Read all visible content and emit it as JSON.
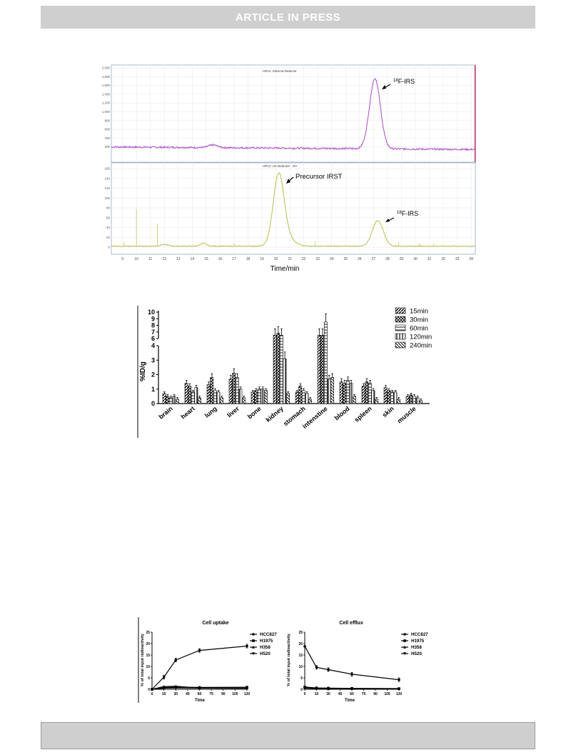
{
  "header": {
    "banner": "ARTICLE IN PRESS"
  },
  "figure1": {
    "gamma": {
      "title": "HPLC Gamma Detector",
      "yticks": [
        "2,000",
        "1,800",
        "1,600",
        "1,400",
        "1,200",
        "1,000",
        "800",
        "600",
        "400",
        "200"
      ],
      "peak_label": "18F-IRS",
      "peak_label_sup": "18",
      "peak_label_main": "F-IRS",
      "color": "#b05ac8"
    },
    "uv": {
      "title": "HPLC UV Detector - 3H",
      "yticks": [
        "160",
        "140",
        "120",
        "100",
        "80",
        "60",
        "40",
        "20",
        "0"
      ],
      "precursor_label": "Precursor IRST",
      "peak_label_sup": "18",
      "peak_label_main": "F-IRS",
      "color": "#b8c040"
    },
    "xticks": [
      "9",
      "10",
      "11",
      "12",
      "13",
      "14",
      "15",
      "16",
      "17",
      "18",
      "19",
      "20",
      "21",
      "22",
      "23",
      "24",
      "25",
      "26",
      "27",
      "28",
      "29",
      "30",
      "31",
      "32",
      "33",
      "34"
    ],
    "xlabel": "Time/min"
  },
  "chart_data": [
    {
      "type": "bar",
      "ylabel": "%ID/g",
      "categories": [
        "brain",
        "heart",
        "lung",
        "liver",
        "bone",
        "kidney",
        "stomach",
        "intenstine",
        "blood",
        "spleen",
        "skin",
        "muscle"
      ],
      "yticks_lower": [
        "0",
        "1",
        "2",
        "3",
        "4"
      ],
      "yticks_upper": [
        "6",
        "7",
        "8",
        "9",
        "10"
      ],
      "series": [
        {
          "name": "15min",
          "values": [
            0.7,
            1.4,
            1.3,
            1.7,
            0.8,
            6.5,
            0.8,
            6.5,
            1.5,
            1.2,
            1.1,
            0.5
          ]
        },
        {
          "name": "30min",
          "values": [
            0.5,
            1.2,
            1.8,
            2.1,
            0.9,
            6.8,
            1.2,
            6.5,
            1.4,
            1.5,
            0.9,
            0.6
          ]
        },
        {
          "name": "60min",
          "values": [
            0.4,
            0.8,
            0.9,
            1.8,
            1.0,
            6.5,
            0.9,
            8.5,
            1.6,
            1.4,
            0.8,
            0.5
          ]
        },
        {
          "name": "120min",
          "values": [
            0.5,
            1.1,
            0.8,
            1.0,
            1.0,
            3.1,
            0.7,
            1.7,
            1.4,
            0.9,
            0.8,
            0.4
          ]
        },
        {
          "name": "240min",
          "values": [
            0.3,
            0.4,
            0.4,
            0.4,
            0.9,
            0.7,
            0.3,
            1.8,
            0.5,
            0.3,
            0.3,
            0.2
          ]
        }
      ]
    },
    {
      "type": "line",
      "title": "Cell uptake",
      "xlabel": "Time",
      "ylabel": "% of total input radioactivity",
      "x": [
        0,
        15,
        30,
        60,
        120
      ],
      "xticks": [
        "0",
        "15",
        "30",
        "45",
        "60",
        "75",
        "90",
        "105",
        "120"
      ],
      "yticks": [
        "0",
        "5",
        "10",
        "15",
        "20",
        "25"
      ],
      "ylim": [
        0,
        25
      ],
      "series": [
        {
          "name": "HCC827",
          "values": [
            0,
            5.3,
            12.8,
            17.0,
            18.9
          ]
        },
        {
          "name": "H1975",
          "values": [
            0,
            0.8,
            1.0,
            0.8,
            0.9
          ]
        },
        {
          "name": "H358",
          "values": [
            0,
            1.2,
            1.3,
            0.6,
            0.5
          ]
        },
        {
          "name": "H520",
          "values": [
            0,
            0.5,
            0.6,
            0.5,
            0.4
          ]
        }
      ]
    },
    {
      "type": "line",
      "title": "Cell efflux",
      "xlabel": "Time",
      "ylabel": "% of total input radioactivity",
      "x": [
        0,
        15,
        30,
        60,
        120
      ],
      "xticks": [
        "0",
        "15",
        "30",
        "45",
        "60",
        "75",
        "90",
        "105",
        "120"
      ],
      "yticks": [
        "0",
        "5",
        "10",
        "15",
        "20",
        "25"
      ],
      "ylim": [
        0,
        25
      ],
      "series": [
        {
          "name": "HCC827",
          "values": [
            18.8,
            9.6,
            8.6,
            6.6,
            4.2
          ]
        },
        {
          "name": "H1975",
          "values": [
            1.0,
            0.6,
            0.5,
            0.4,
            0.3
          ]
        },
        {
          "name": "H358",
          "values": [
            0.8,
            0.4,
            0.3,
            0.3,
            0.2
          ]
        },
        {
          "name": "H520",
          "values": [
            0.5,
            0.3,
            0.3,
            0.2,
            0.2
          ]
        }
      ]
    }
  ]
}
